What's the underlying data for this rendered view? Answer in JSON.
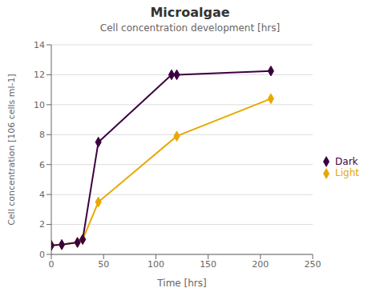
{
  "chart_data": {
    "type": "line",
    "title": "Microalgae",
    "subtitle": "Cell concentration development [hrs]",
    "xlabel": "Time [hrs]",
    "ylabel": "Cell concentration [106 cells ml-1]",
    "series": [
      {
        "name": "Light",
        "color": "#E8A800",
        "marker": "diamond",
        "x": [
          0,
          10,
          25,
          30,
          45,
          120,
          210
        ],
        "values": [
          0.6,
          0.65,
          0.8,
          1.0,
          3.5,
          7.9,
          10.4
        ]
      },
      {
        "name": "Dark",
        "color": "#3B0040",
        "marker": "diamond",
        "x": [
          0,
          10,
          25,
          30,
          45,
          115,
          120,
          210
        ],
        "values": [
          0.6,
          0.65,
          0.8,
          1.0,
          7.5,
          12.0,
          12.0,
          12.25
        ]
      }
    ],
    "xlim": [
      0,
      250
    ],
    "ylim": [
      0,
      14
    ],
    "xticks": [
      0,
      50,
      100,
      150,
      200,
      250
    ],
    "yticks": [
      0,
      2,
      4,
      6,
      8,
      10,
      12,
      14
    ],
    "grid": "y",
    "legend": "right"
  }
}
